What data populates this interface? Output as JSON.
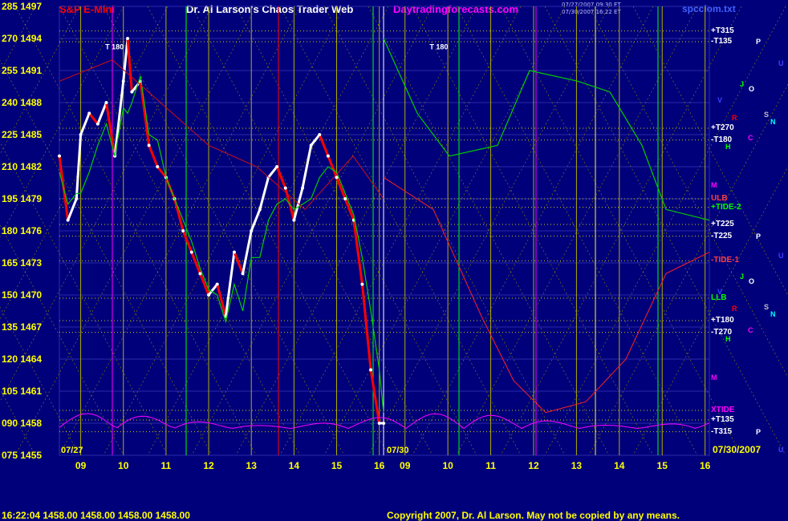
{
  "header": {
    "title_left": "S&P E-Mini",
    "title_center": "Dr. Al Larson's Chaos Trader Web",
    "site": "Daytradingforecasts.com",
    "timestamp1": "07/27/2007 09:30 ET",
    "timestamp2": "07/30/2007 16:22 ET",
    "file": "spcclom.txt"
  },
  "footer": {
    "quote": "16:22:04  1458.00 1458.00 1458.00 1458.00",
    "copyright": "Copyright 2007, Dr. Al Larson. May not be copied by any means."
  },
  "date_left": "07/27",
  "date_mid": "07/30",
  "date_right": "07/30/2007",
  "colors": {
    "background": "#00007b",
    "price_white": "#ffffff",
    "price_red": "#ff0000",
    "green_line": "#00cc00",
    "yellow_grid": "#ffff00",
    "magenta": "#ff00ff"
  },
  "chart_data": {
    "type": "line",
    "title": "S&P E-Mini",
    "y_ticks": [
      {
        "deg": "285",
        "price": "1497"
      },
      {
        "deg": "270",
        "price": "1494"
      },
      {
        "deg": "255",
        "price": "1491"
      },
      {
        "deg": "240",
        "price": "1488"
      },
      {
        "deg": "225",
        "price": "1485"
      },
      {
        "deg": "210",
        "price": "1482"
      },
      {
        "deg": "195",
        "price": "1479"
      },
      {
        "deg": "180",
        "price": "1476"
      },
      {
        "deg": "165",
        "price": "1473"
      },
      {
        "deg": "150",
        "price": "1470"
      },
      {
        "deg": "135",
        "price": "1467"
      },
      {
        "deg": "120",
        "price": "1464"
      },
      {
        "deg": "105",
        "price": "1461"
      },
      {
        "deg": "090",
        "price": "1458"
      },
      {
        "deg": "075",
        "price": "1455"
      }
    ],
    "ylim": [
      1455,
      1497
    ],
    "x_ticks": [
      "09",
      "10",
      "11",
      "12",
      "13",
      "14",
      "15",
      "16",
      "09",
      "10",
      "11",
      "12",
      "13",
      "14",
      "15",
      "16"
    ],
    "x_hours": [
      9,
      10,
      11,
      12,
      13,
      14,
      15,
      16,
      9,
      10,
      11,
      12,
      13,
      14,
      15,
      16
    ],
    "xlim_hours": [
      8.5,
      16.1
    ],
    "price_series": {
      "name": "S&P E-Mini",
      "hours": [
        8.5,
        8.7,
        8.9,
        9.0,
        9.2,
        9.4,
        9.6,
        9.8,
        10.0,
        10.1,
        10.2,
        10.4,
        10.6,
        10.8,
        11.0,
        11.2,
        11.4,
        11.6,
        11.8,
        12.0,
        12.2,
        12.4,
        12.6,
        12.8,
        13.0,
        13.2,
        13.4,
        13.6,
        13.8,
        14.0,
        14.2,
        14.4,
        14.6,
        14.8,
        15.0,
        15.2,
        15.4,
        15.6,
        15.8,
        16.0,
        16.1
      ],
      "values": [
        1483,
        1477,
        1479,
        1485,
        1487,
        1486,
        1488,
        1483,
        1490,
        1494,
        1489,
        1490,
        1484,
        1482,
        1481,
        1479,
        1476,
        1474,
        1472,
        1470,
        1471,
        1468,
        1474,
        1472,
        1476,
        1478,
        1481,
        1482,
        1480,
        1477,
        1480,
        1484,
        1485,
        1483,
        1481,
        1479,
        1477,
        1471,
        1463,
        1458,
        1458
      ]
    },
    "right_labels": [
      {
        "text": "+T315",
        "price": 1494.7,
        "color": "#ffffff"
      },
      {
        "text": "-T135",
        "price": 1493.7,
        "color": "#ffffff"
      },
      {
        "text": "+T270",
        "price": 1485.6,
        "color": "#ffffff"
      },
      {
        "text": "-T180",
        "price": 1484.5,
        "color": "#ffffff"
      },
      {
        "text": "ULB",
        "price": 1479.0,
        "color": "#ff4040"
      },
      {
        "text": "+TIDE-2",
        "price": 1478.2,
        "color": "#00ff00"
      },
      {
        "text": "+T225",
        "price": 1476.6,
        "color": "#ffffff"
      },
      {
        "text": "-T225",
        "price": 1475.5,
        "color": "#ffffff"
      },
      {
        "text": "-TIDE-1",
        "price": 1473.2,
        "color": "#ff4040"
      },
      {
        "text": "LLB",
        "price": 1469.7,
        "color": "#00ff00"
      },
      {
        "text": "+T180",
        "price": 1467.6,
        "color": "#ffffff"
      },
      {
        "text": "-T270",
        "price": 1466.5,
        "color": "#ffffff"
      },
      {
        "text": "XTIDE",
        "price": 1459.2,
        "color": "#ff00ff"
      },
      {
        "text": "+T135",
        "price": 1458.3,
        "color": "#ffffff"
      },
      {
        "text": "-T315",
        "price": 1457.2,
        "color": "#ffffff"
      }
    ],
    "planet_labels": [
      {
        "text": "P",
        "price": 1493.7,
        "color": "#ffffff"
      },
      {
        "text": "U",
        "price": 1491.7,
        "color": "#4040ff"
      },
      {
        "text": "J",
        "price": 1489.7,
        "color": "#00ff00"
      },
      {
        "text": "O",
        "price": 1489.3,
        "color": "#ffffff"
      },
      {
        "text": "V",
        "price": 1488.2,
        "color": "#4040ff"
      },
      {
        "text": "R",
        "price": 1486.6,
        "color": "#ff0000"
      },
      {
        "text": "S",
        "price": 1486.9,
        "color": "#c0c0c0"
      },
      {
        "text": "N",
        "price": 1486.2,
        "color": "#00ffff"
      },
      {
        "text": "C",
        "price": 1484.7,
        "color": "#ff00ff"
      },
      {
        "text": "H",
        "price": 1483.9,
        "color": "#00ff00"
      },
      {
        "text": "M",
        "price": 1480.3,
        "color": "#ff00ff"
      },
      {
        "text": "P",
        "price": 1475.5,
        "color": "#ffffff"
      },
      {
        "text": "U",
        "price": 1473.7,
        "color": "#4040ff"
      },
      {
        "text": "J",
        "price": 1471.7,
        "color": "#00ff00"
      },
      {
        "text": "O",
        "price": 1471.3,
        "color": "#ffffff"
      },
      {
        "text": "V",
        "price": 1470.3,
        "color": "#4040ff"
      },
      {
        "text": "R",
        "price": 1468.7,
        "color": "#ff0000"
      },
      {
        "text": "S",
        "price": 1468.9,
        "color": "#c0c0c0"
      },
      {
        "text": "N",
        "price": 1468.2,
        "color": "#00ffff"
      },
      {
        "text": "C",
        "price": 1466.7,
        "color": "#ff00ff"
      },
      {
        "text": "H",
        "price": 1465.9,
        "color": "#00ff00"
      },
      {
        "text": "M",
        "price": 1462.3,
        "color": "#ff00ff"
      },
      {
        "text": "P",
        "price": 1457.2,
        "color": "#ffffff"
      },
      {
        "text": "U",
        "price": 1455.5,
        "color": "#4040ff"
      }
    ],
    "in_chart_labels": [
      {
        "text": "T 180",
        "hour": 9.5,
        "price": 1493.0,
        "color": "#ffffff"
      },
      {
        "text": "T 180",
        "hour": 9.5,
        "price": 1493.0,
        "color": "#ffffff",
        "panel": 2
      }
    ],
    "grid": true
  }
}
